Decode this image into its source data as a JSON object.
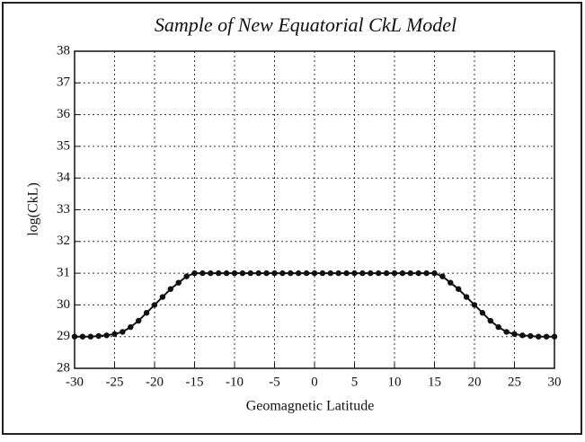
{
  "chart_data": {
    "type": "line",
    "title": "Sample of New Equatorial CkL Model",
    "xlabel": "Geomagnetic Latitude",
    "ylabel": "log(CkL)",
    "x": [
      -30,
      -29,
      -28,
      -27,
      -26,
      -25,
      -24,
      -23,
      -22,
      -21,
      -20,
      -19,
      -18,
      -17,
      -16,
      -15,
      -14,
      -13,
      -12,
      -11,
      -10,
      -9,
      -8,
      -7,
      -6,
      -5,
      -4,
      -3,
      -2,
      -1,
      0,
      1,
      2,
      3,
      4,
      5,
      6,
      7,
      8,
      9,
      10,
      11,
      12,
      13,
      14,
      15,
      16,
      17,
      18,
      19,
      20,
      21,
      22,
      23,
      24,
      25,
      26,
      27,
      28,
      29,
      30
    ],
    "series": [
      {
        "name": "CkL",
        "color": "#111111",
        "values": [
          29,
          29,
          29,
          29.02,
          29.04,
          29.08,
          29.15,
          29.3,
          29.5,
          29.75,
          30,
          30.25,
          30.5,
          30.7,
          30.9,
          31,
          31,
          31,
          31,
          31,
          31,
          31,
          31,
          31,
          31,
          31,
          31,
          31,
          31,
          31,
          31,
          31,
          31,
          31,
          31,
          31,
          31,
          31,
          31,
          31,
          31,
          31,
          31,
          31,
          31,
          31,
          30.9,
          30.7,
          30.5,
          30.25,
          30,
          29.75,
          29.5,
          29.3,
          29.15,
          29.08,
          29.04,
          29.02,
          29,
          29,
          29
        ]
      }
    ],
    "xlim": [
      -30,
      30
    ],
    "xticks": [
      -30,
      -25,
      -20,
      -15,
      -10,
      -5,
      0,
      5,
      10,
      15,
      20,
      25,
      30
    ],
    "ylim": [
      28,
      38
    ],
    "yticks": [
      28,
      29,
      30,
      31,
      32,
      33,
      34,
      35,
      36,
      37,
      38
    ],
    "grid": true
  }
}
